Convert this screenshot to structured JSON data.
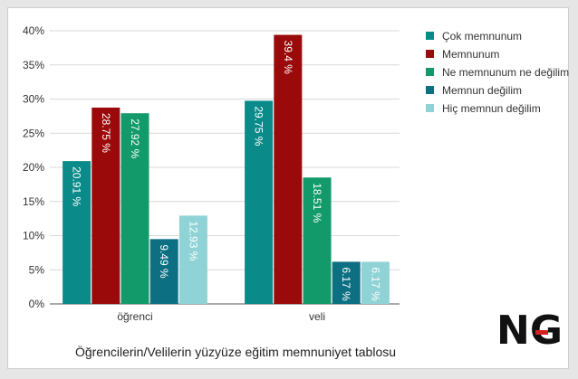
{
  "chart_data": {
    "type": "bar",
    "title": "",
    "caption": "Öğrencilerin/Velilerin yüzyüze eğitim memnuniyet tablosu",
    "xlabel": "",
    "ylabel": "",
    "ylim": [
      0,
      40
    ],
    "y_ticks": [
      "0%",
      "5%",
      "10%",
      "15%",
      "20%",
      "25%",
      "30%",
      "35%",
      "40%"
    ],
    "categories": [
      "öğrenci",
      "veli"
    ],
    "grid": true,
    "legend_position": "right",
    "series": [
      {
        "name": "Çok memnunum",
        "color": "#0b8a8a",
        "values": [
          20.91,
          29.75
        ],
        "labels": [
          "20.91 %",
          "29.75 %"
        ]
      },
      {
        "name": "Memnunum",
        "color": "#9b0a0a",
        "values": [
          28.75,
          39.4
        ],
        "labels": [
          "28.75 %",
          "39.4 %"
        ]
      },
      {
        "name": "Ne memnunum ne değilim",
        "color": "#129a6a",
        "values": [
          27.92,
          18.51
        ],
        "labels": [
          "27.92 %",
          "18.51 %"
        ]
      },
      {
        "name": "Memnun değilim",
        "color": "#0d6f82",
        "values": [
          9.49,
          6.17
        ],
        "labels": [
          "9.49 %",
          "6.17 %"
        ]
      },
      {
        "name": "Hiç memnun değilim",
        "color": "#8fd3d6",
        "values": [
          12.93,
          6.17
        ],
        "labels": [
          "12.93 %",
          "6.17 %"
        ]
      }
    ]
  },
  "logo": {
    "text": "NG",
    "color_main": "#111111",
    "color_accent": "#d42020"
  }
}
